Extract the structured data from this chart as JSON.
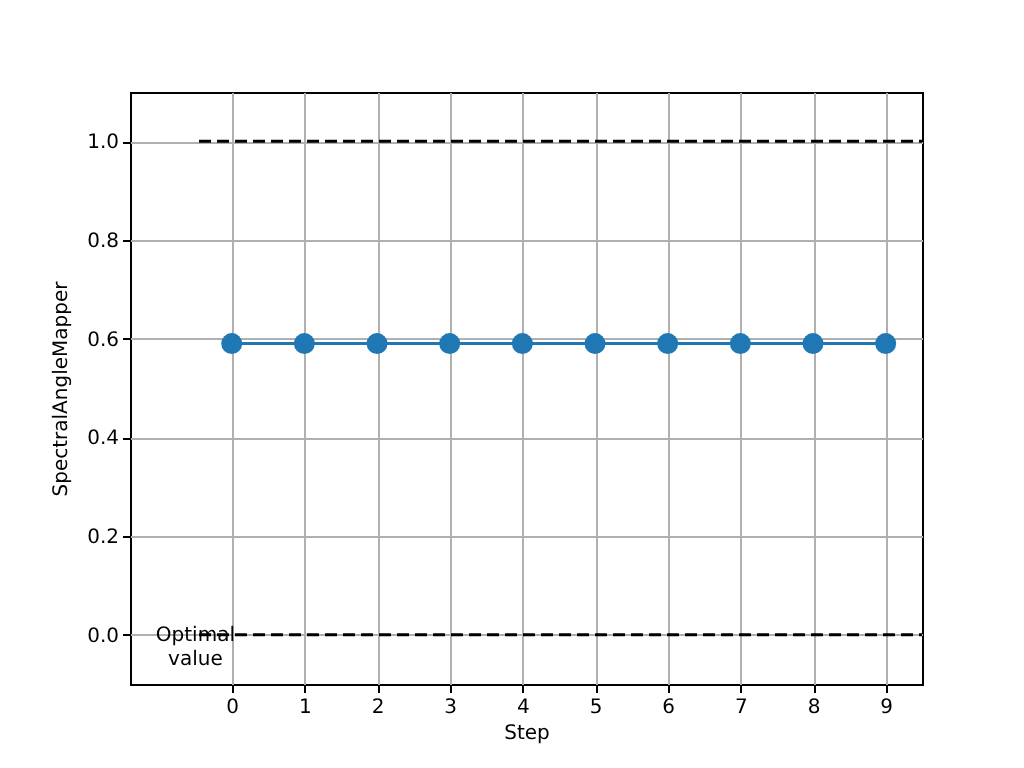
{
  "chart_data": {
    "type": "line",
    "xlabel": "Step",
    "ylabel": "SpectralAngleMapper",
    "xlim": [
      -1.4,
      9.5
    ],
    "xticks": [
      0,
      1,
      2,
      3,
      4,
      5,
      6,
      7,
      8,
      9
    ],
    "ylim": [
      -0.1,
      1.1
    ],
    "yticks": [
      {
        "value": 0,
        "label": "0.0"
      },
      0.2,
      0.4,
      0.6,
      0.8,
      {
        "value": 1,
        "label": "1.0"
      }
    ],
    "grid": true,
    "series": [
      {
        "color": "#1f77b4",
        "marker": "circle",
        "line_style": "solid",
        "x": [
          0,
          1,
          2,
          3,
          4,
          5,
          6,
          7,
          8,
          9
        ],
        "values": [
          0.59,
          0.59,
          0.59,
          0.59,
          0.59,
          0.59,
          0.59,
          0.59,
          0.59,
          0.59
        ]
      },
      {
        "color": "#000000",
        "marker": "none",
        "line_style": "dashed",
        "x": [
          -0.45,
          9.5
        ],
        "values": [
          1.0,
          1.0
        ]
      },
      {
        "color": "#000000",
        "marker": "none",
        "line_style": "dashed",
        "x": [
          -0.45,
          9.5
        ],
        "values": [
          0.0,
          0.0
        ]
      }
    ],
    "annotations": [
      {
        "text": "Optimal\n value",
        "x": -0.5,
        "y": 0.0
      }
    ]
  }
}
